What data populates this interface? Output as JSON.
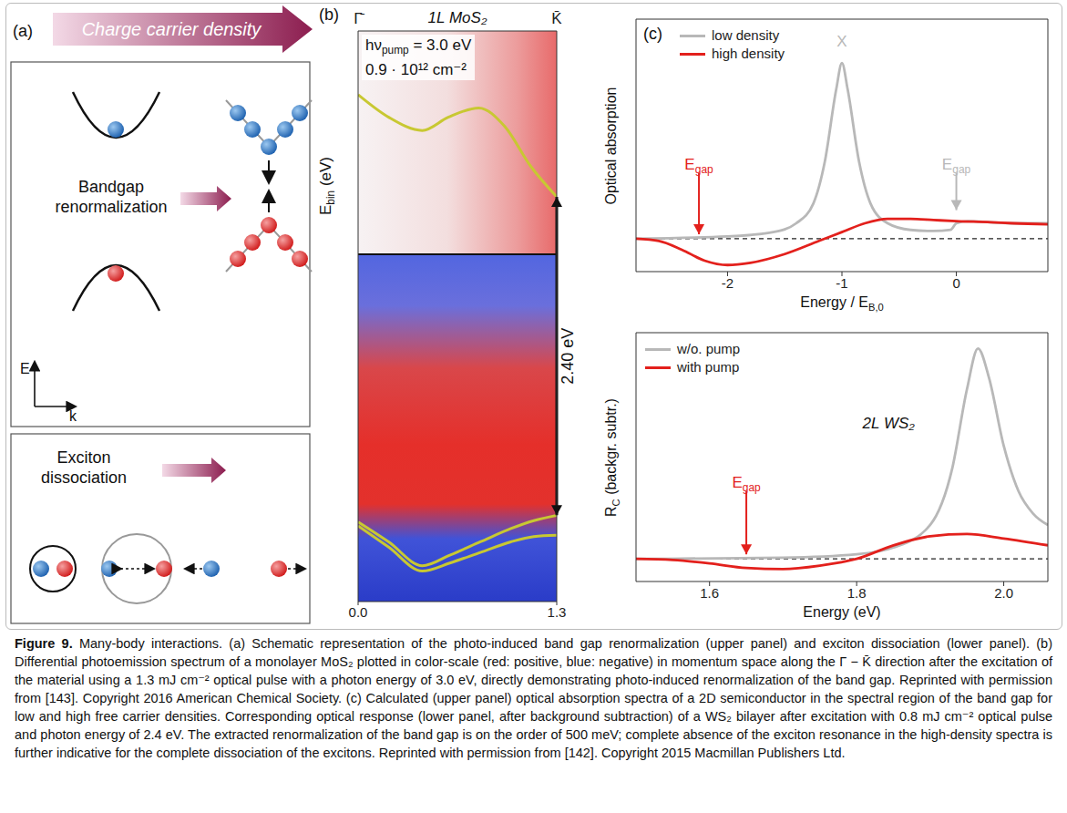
{
  "panel_a": {
    "panel_label": "(a)",
    "arrow_label": "Charge carrier density",
    "renormalization_label": [
      "Bandgap",
      "renormalization"
    ],
    "dissociation_label": [
      "Exciton",
      "dissociation"
    ],
    "axis_e": "E",
    "axis_k": "k"
  },
  "chart_data": [
    {
      "type": "line",
      "panel_label": "(b)",
      "title": "1L MoS₂",
      "pump": {
        "text": "hν",
        "sub": "pump",
        "rest": " = 3.0 eV"
      },
      "density": "0.9 · 10¹² cm⁻²",
      "ylabel": {
        "text": "E",
        "sub": "bin",
        "rest": " (eV)"
      },
      "xlim": [
        0,
        1.3
      ],
      "xticks": [
        {
          "value": 0,
          "label": "0.0"
        },
        {
          "value": 1.3,
          "label": "1.3"
        }
      ],
      "x2ticks": [
        {
          "value": 0,
          "label": "Γ̄"
        },
        {
          "value": 1.3,
          "label": "K̄"
        }
      ],
      "ylim": [
        -0.65,
        3.65
      ],
      "tick_labels": "x",
      "series": [
        {
          "color": "#c8c832",
          "x": [
            0,
            0.2,
            0.42,
            0.59,
            0.79,
            0.96,
            1.13,
            1.3
          ],
          "values": [
            3.17,
            3.0,
            2.9,
            3.0,
            3.07,
            2.93,
            2.63,
            2.4
          ]
        },
        {
          "color": "#c8c832",
          "x": [
            0,
            0.2,
            0.42,
            0.6,
            0.8,
            1.0,
            1.15,
            1.3
          ],
          "values": [
            -0.05,
            -0.2,
            -0.38,
            -0.3,
            -0.2,
            -0.1,
            -0.04,
            0.0
          ]
        },
        {
          "color": "#c8c832",
          "x": [
            0,
            0.2,
            0.42,
            0.6,
            0.8,
            1.0,
            1.15,
            1.3
          ],
          "values": [
            -0.08,
            -0.24,
            -0.42,
            -0.36,
            -0.28,
            -0.2,
            -0.16,
            -0.15
          ]
        }
      ],
      "gap_arrow": {
        "x": 1.3,
        "from": 0,
        "to": 2.4,
        "label": "2.40 eV"
      }
    },
    {
      "type": "line",
      "panel_label": "(c)",
      "xlabel": {
        "text": "Energy / E",
        "sub": "B,0"
      },
      "ylabel": "Optical absorption",
      "xlim": [
        -2.8,
        0.8
      ],
      "xticks": [
        -2,
        -1,
        0
      ],
      "ylim": [
        -0.15,
        1.0
      ],
      "tick_labels": "x",
      "legend": "upper left",
      "reference_line": 0,
      "series": [
        {
          "name": "low density",
          "color": "#b8b8b8",
          "x": [
            -2.8,
            -2,
            -1.6,
            -1.4,
            -1.25,
            -1.15,
            -1.05,
            -1,
            -0.95,
            -0.85,
            -0.75,
            -0.6,
            -0.4,
            -0.2,
            -0.05,
            0,
            0.1,
            0.3,
            0.5,
            0.8
          ],
          "values": [
            0,
            0.01,
            0.03,
            0.07,
            0.16,
            0.35,
            0.68,
            0.8,
            0.68,
            0.35,
            0.16,
            0.07,
            0.04,
            0.035,
            0.04,
            0.07,
            0.08,
            0.075,
            0.07,
            0.07
          ]
        },
        {
          "name": "high density",
          "color": "#e3201c",
          "x": [
            -2.8,
            -2.6,
            -2.4,
            -2.2,
            -2,
            -1.8,
            -1.5,
            -1.2,
            -1,
            -0.8,
            -0.6,
            -0.4,
            -0.2,
            0,
            0.3,
            0.5,
            0.8
          ],
          "values": [
            0,
            -0.01,
            -0.05,
            -0.1,
            -0.12,
            -0.11,
            -0.07,
            -0.01,
            0.03,
            0.07,
            0.09,
            0.09,
            0.085,
            0.08,
            0.075,
            0.07,
            0.065
          ]
        }
      ],
      "annotations": [
        {
          "text": "X",
          "x": -1,
          "y": 0.86,
          "color": "#b8b8b8"
        },
        {
          "text": "E",
          "sub": "gap",
          "x": -2.25,
          "y": 0.3,
          "arrow_to": 0.02,
          "color": "#e3201c"
        },
        {
          "text": "E",
          "sub": "gap",
          "x": 0,
          "y": 0.3,
          "arrow_to": 0.13,
          "color": "#b8b8b8"
        }
      ]
    },
    {
      "type": "line",
      "label": "2L WS₂",
      "xlabel": "Energy (eV)",
      "ylabel": {
        "text": "R",
        "sub": "C",
        "rest": " (backgr. subtr.)"
      },
      "xlim": [
        1.5,
        2.06
      ],
      "xticks": [
        1.6,
        1.8,
        {
          "value": 2,
          "label": "2.0"
        }
      ],
      "ylim": [
        -0.1,
        1.0
      ],
      "tick_labels": "x",
      "legend": "upper left",
      "reference_line": 0,
      "series": [
        {
          "name": "w/o. pump",
          "color": "#b8b8b8",
          "x": [
            1.5,
            1.7,
            1.8,
            1.85,
            1.9,
            1.93,
            1.95,
            1.965,
            1.98,
            2,
            2.02,
            2.04,
            2.06
          ],
          "values": [
            0,
            0.005,
            0.02,
            0.05,
            0.15,
            0.4,
            0.75,
            0.93,
            0.8,
            0.5,
            0.3,
            0.2,
            0.15
          ]
        },
        {
          "name": "with pump",
          "color": "#e3201c",
          "x": [
            1.5,
            1.55,
            1.6,
            1.65,
            1.7,
            1.75,
            1.8,
            1.85,
            1.9,
            1.95,
            2,
            2.06
          ],
          "values": [
            0,
            -0.005,
            -0.02,
            -0.04,
            -0.045,
            -0.03,
            0,
            0.06,
            0.1,
            0.11,
            0.09,
            0.06
          ]
        }
      ],
      "annotations": [
        {
          "text": "E",
          "sub": "gap",
          "x": 1.65,
          "y": 0.3,
          "arrow_to": 0.02,
          "color": "#e3201c"
        }
      ]
    }
  ],
  "caption": {
    "label": "Figure 9.",
    "text": "Many-body interactions. (a) Schematic representation of the photo-induced band gap renormalization (upper panel) and exciton dissociation (lower panel). (b) Differential photoemission spectrum of a monolayer MoS₂ plotted in color-scale (red: positive, blue: negative) in momentum space along the Γ − K̄ direction after the excitation of the material using a 1.3 mJ cm⁻² optical pulse with a photon energy of 3.0 eV, directly demonstrating photo-induced renormalization of the band gap. Reprinted with permission from [143]. Copyright 2016 American Chemical Society. (c) Calculated (upper panel) optical absorption spectra of a 2D semiconductor in the spectral region of the band gap for low and high free carrier densities. Corresponding optical response (lower panel, after background subtraction) of a WS₂ bilayer after excitation with 0.8 mJ cm⁻² optical pulse and photon energy of 2.4 eV. The extracted renormalization of the band gap is on the order of 500 meV; complete absence of the exciton resonance in the high-density spectra is further indicative for the complete dissociation of the excitons. Reprinted with permission from [142]. Copyright 2015 Macmillan Publishers Ltd."
  }
}
